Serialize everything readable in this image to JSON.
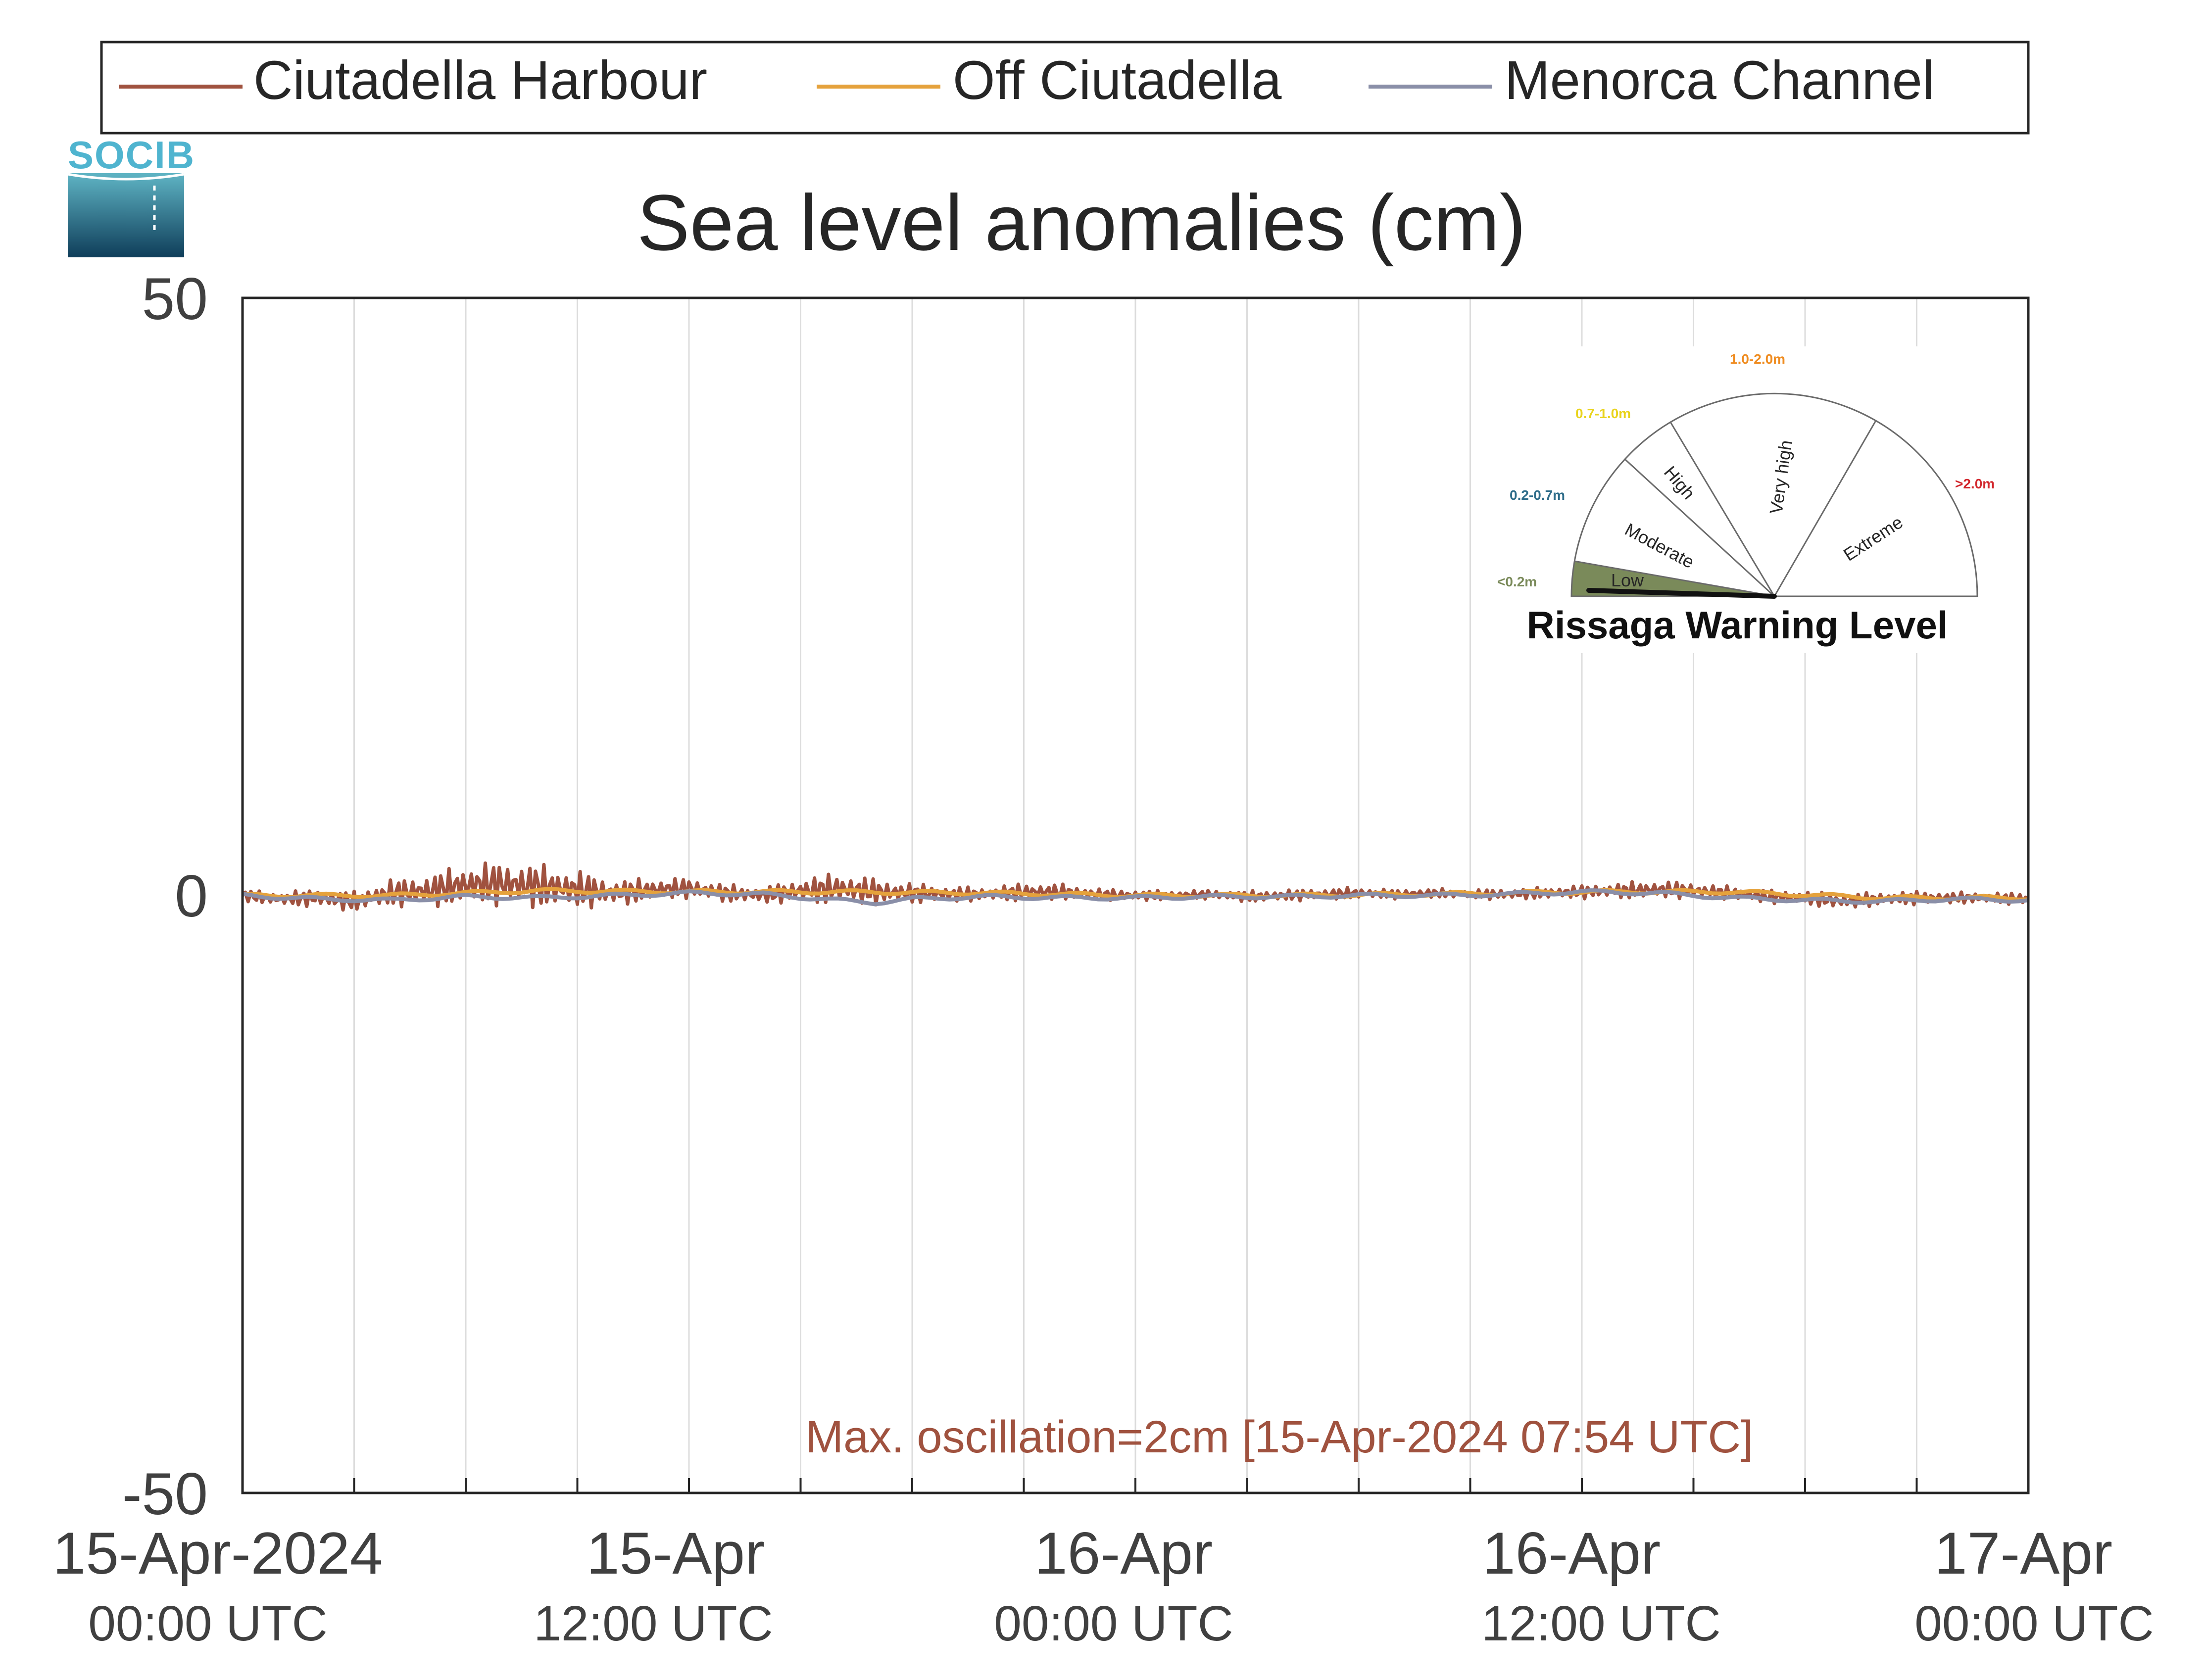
{
  "chart_data": {
    "type": "line",
    "title": "Sea level anomalies (cm)",
    "ylim": [
      -50,
      50
    ],
    "yticks": [
      50,
      0,
      -50
    ],
    "xlim_hours": [
      0,
      48
    ],
    "x_start": "15-Apr-2024 00:00 UTC",
    "x_end": "17-Apr-2024 00:00 UTC",
    "grid": "vertical",
    "legend_position": "top",
    "xtick_labels": [
      {
        "date": "15-Apr-2024",
        "time": "00:00 UTC"
      },
      {
        "date": "15-Apr",
        "time": "12:00 UTC"
      },
      {
        "date": "16-Apr",
        "time": "00:00 UTC"
      },
      {
        "date": "16-Apr",
        "time": "12:00 UTC"
      },
      {
        "date": "17-Apr",
        "time": "00:00 UTC"
      }
    ],
    "series": [
      {
        "name": "Ciutadella Harbour",
        "color": "#a0523f",
        "x_hours": [
          0,
          1,
          2,
          3,
          4,
          5,
          6,
          7,
          7.9,
          9,
          10,
          11,
          12,
          13,
          14,
          15,
          16,
          17,
          18,
          19,
          20,
          21,
          22,
          23,
          24,
          25,
          26,
          27,
          28,
          29,
          30,
          31,
          32,
          33,
          34,
          35,
          36,
          37,
          38,
          39,
          40,
          41,
          42,
          43,
          44,
          45,
          46,
          47,
          48
        ],
        "values": [
          0,
          -0.3,
          -0.2,
          -0.5,
          0.2,
          0.4,
          0.9,
          1,
          0.8,
          0.5,
          0.2,
          0.5,
          0.6,
          0.2,
          0,
          0.4,
          0.6,
          0.3,
          0.2,
          0.1,
          0.1,
          0.3,
          0.3,
          0.1,
          0,
          0,
          0.1,
          -0.1,
          0,
          0.1,
          0.2,
          0.1,
          0.2,
          0.1,
          0.1,
          0.2,
          0.3,
          0.4,
          0.5,
          0.4,
          0.2,
          -0.1,
          -0.2,
          -0.5,
          -0.3,
          -0.2,
          -0.2,
          -0.2,
          -0.3
        ],
        "oscillation_cm": [
          0.5,
          0.6,
          0.8,
          0.9,
          1.2,
          1.5,
          1.8,
          2,
          2,
          1.7,
          1.2,
          1,
          0.9,
          0.8,
          0.7,
          1.1,
          1.4,
          1.2,
          0.9,
          0.7,
          0.6,
          0.8,
          0.7,
          0.5,
          0.5,
          0.4,
          0.4,
          0.5,
          0.5,
          0.5,
          0.5,
          0.4,
          0.4,
          0.4,
          0.5,
          0.5,
          0.6,
          0.7,
          0.8,
          0.7,
          0.6,
          0.6,
          0.6,
          0.7,
          0.6,
          0.6,
          0.5,
          0.5,
          0.5
        ]
      },
      {
        "name": "Off Ciutadella",
        "color": "#e5a23c",
        "x_hours": [
          0,
          4,
          8,
          12,
          16,
          20,
          24,
          28,
          32,
          36,
          40,
          44,
          48
        ],
        "values": [
          0,
          0,
          0.4,
          0.3,
          0.3,
          0.2,
          0,
          0,
          0.1,
          0.3,
          0.3,
          -0.2,
          -0.2
        ]
      },
      {
        "name": "Menorca Channel",
        "color": "#8a8fa8",
        "x_hours": [
          0,
          2,
          4,
          6,
          8,
          10,
          12,
          14,
          16,
          17,
          18,
          20,
          22,
          24,
          26,
          28,
          30,
          32,
          34,
          36,
          38,
          40,
          42,
          44,
          46,
          48
        ],
        "values": [
          0,
          -0.3,
          -0.4,
          -0.1,
          -0.2,
          0,
          0.2,
          0.1,
          -0.4,
          -0.6,
          -0.3,
          -0.1,
          -0.2,
          -0.2,
          -0.1,
          -0.1,
          0,
          0,
          0.1,
          0.3,
          0.2,
          -0.2,
          -0.4,
          -0.5,
          -0.3,
          -0.4
        ]
      }
    ],
    "annotation": "Max. oscillation=2cm [15-Apr-2024 07:54 UTC]",
    "annotation_color": "#a0523f"
  },
  "logo": {
    "text": "SOCIB"
  },
  "gauge": {
    "title": "Rissaga Warning Level",
    "level": "Low",
    "segments": [
      {
        "name": "Low",
        "range": "<0.2m",
        "color": "#7a8a5a"
      },
      {
        "name": "Moderate",
        "range": "0.2-0.7m",
        "color": "#2f6d8a"
      },
      {
        "name": "High",
        "range": "0.7-1.0m",
        "color": "#e9d31c"
      },
      {
        "name": "Very high",
        "range": "1.0-2.0m",
        "color": "#ef8c20"
      },
      {
        "name": "Extreme",
        "range": ">2.0m",
        "color": "#d2262c"
      }
    ]
  }
}
